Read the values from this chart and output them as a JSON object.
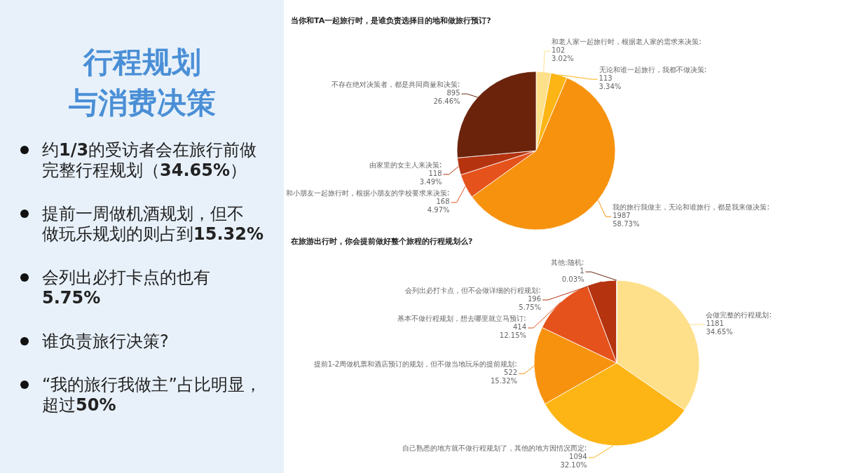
{
  "chart_data": [
    {
      "type": "other",
      "title": "行程规划与消费决策",
      "annotations": [
        "约**1/3**的受访者会在旅行前做完整行程规划（**34.65%**）",
        "提前一周做机酒规划，但不做玩乐规划的则占到**15.32%**",
        "会列出必打卡点的也有**5.75%**",
        "谁负责旅行决策?",
        "“我的旅行我做主”占比明显，超过**50%**"
      ]
    },
    {
      "type": "pie",
      "title": "当你和TA一起旅行时，是谁负责选择目的地和做旅行预订?",
      "categories": [
        "和老人家一起旅行时，根据老人家的需求来决策",
        "无论和谁一起旅行，我都不做决策",
        "我的旅行我做主，无论和谁旅行，都是我来做决策",
        "和小朋友一起旅行时，根据小朋友的学校要求来决策",
        "由家里的女主人来决策",
        "不存在绝对决策者，都是共同商量和决策"
      ],
      "values": [
        3.02,
        3.34,
        58.73,
        4.97,
        3.49,
        26.46
      ],
      "value_labels": [
        "102\n3.02%",
        "113\n3.34%",
        "1987\n58.73%",
        "168\n4.97%",
        "118\n3.49%",
        "895\n26.46%"
      ],
      "colors": [
        "#fde08a",
        "#fdb515",
        "#f7920f",
        "#e5521c",
        "#b5330f",
        "#6b230c"
      ]
    },
    {
      "type": "pie",
      "title": "在旅游出行时，你会提前做好整个旅程的行程规划么?",
      "categories": [
        "会做完整的行程规划",
        "自己熟悉的地方就不做行程规划了，其他的地方因情况而定",
        "提前1-2周做机票和酒店预订的规划，但不做当地玩乐的提前规划",
        "基本不做行程规划，想去哪里就立马预订",
        "会列出必打卡点，但不会做详细的行程规划",
        "其他:随机"
      ],
      "values": [
        34.65,
        32.1,
        15.32,
        12.15,
        5.75,
        0.03
      ],
      "value_labels": [
        "1181\n34.65%",
        "1094\n32.10%",
        "522\n15.32%",
        "414\n12.15%",
        "196\n5.75%",
        "1\n0.03%"
      ],
      "colors": [
        "#fee08b",
        "#fdb515",
        "#f7920f",
        "#e5521c",
        "#b5330f",
        "#6b230c"
      ]
    }
  ]
}
